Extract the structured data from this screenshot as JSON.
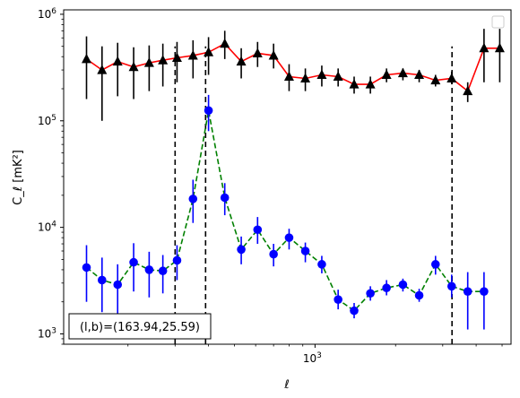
{
  "chart_data": {
    "type": "scatter",
    "title": "",
    "xlabel": "ℓ",
    "ylabel": "C_ℓ  [mK²]",
    "xscale": "log",
    "yscale": "log",
    "xlim": [
      115,
      5400
    ],
    "ylim": [
      800,
      1100000
    ],
    "grid": false,
    "legend": "top-right",
    "annotation": "(l,b)=(163.94,25.59)",
    "x_ticks": [
      {
        "value": 1000,
        "label": "10^3"
      }
    ],
    "y_ticks": [
      {
        "value": 1000,
        "label": "10^3"
      },
      {
        "value": 10000,
        "label": "10^4"
      },
      {
        "value": 100000,
        "label": "10^5"
      },
      {
        "value": 1000000,
        "label": "10^6"
      }
    ],
    "vlines": [
      {
        "x": 300,
        "y_range": [
          800,
          500000
        ]
      },
      {
        "x": 390,
        "y_range": [
          800,
          500000
        ]
      },
      {
        "x": 3250,
        "y_range": [
          800,
          500000
        ]
      }
    ],
    "series": [
      {
        "color": "#ff0000",
        "marker": "triangle",
        "marker_color": "#000000",
        "errorbar_color": "#000000",
        "line_style": "solid",
        "x": [
          140,
          160,
          183,
          210,
          240,
          270,
          305,
          350,
          400,
          460,
          530,
          610,
          700,
          800,
          920,
          1060,
          1220,
          1400,
          1610,
          1850,
          2130,
          2450,
          2820,
          3240,
          3720,
          4280,
          4900
        ],
        "y": [
          380000,
          300000,
          360000,
          320000,
          350000,
          370000,
          390000,
          410000,
          440000,
          530000,
          360000,
          430000,
          410000,
          260000,
          250000,
          270000,
          260000,
          220000,
          220000,
          270000,
          280000,
          270000,
          240000,
          250000,
          190000,
          480000,
          480000
        ],
        "err_low": [
          160000,
          100000,
          170000,
          160000,
          190000,
          210000,
          230000,
          250000,
          270000,
          380000,
          250000,
          320000,
          310000,
          190000,
          190000,
          210000,
          210000,
          180000,
          180000,
          230000,
          240000,
          230000,
          210000,
          220000,
          150000,
          230000,
          230000
        ],
        "err_high": [
          620000,
          500000,
          540000,
          490000,
          510000,
          530000,
          550000,
          570000,
          610000,
          700000,
          480000,
          550000,
          530000,
          340000,
          310000,
          330000,
          310000,
          260000,
          260000,
          310000,
          310000,
          300000,
          270000,
          290000,
          230000,
          730000,
          730000
        ]
      },
      {
        "color": "#008000",
        "marker": "circle",
        "marker_color": "#0000ff",
        "errorbar_color": "#0000ff",
        "line_style": "dashed",
        "x": [
          140,
          160,
          183,
          210,
          240,
          270,
          305,
          350,
          400,
          460,
          530,
          610,
          700,
          800,
          920,
          1060,
          1220,
          1400,
          1610,
          1850,
          2130,
          2450,
          2820,
          3240,
          3720,
          4280
        ],
        "y": [
          4200,
          3200,
          2900,
          4700,
          4000,
          3900,
          4900,
          18500,
          125000,
          19000,
          6200,
          9500,
          5600,
          8000,
          6000,
          4500,
          2100,
          1650,
          2400,
          2700,
          2900,
          2300,
          4500,
          2800,
          2500,
          2500
        ],
        "err_low": [
          2000,
          1600,
          1500,
          2500,
          2200,
          2400,
          3200,
          11000,
          80000,
          13000,
          4500,
          7000,
          4300,
          6200,
          4700,
          3700,
          1700,
          1400,
          2050,
          2300,
          2500,
          2000,
          3600,
          2200,
          1100,
          1100
        ],
        "err_high": [
          6800,
          5200,
          4500,
          7100,
          5900,
          5500,
          6800,
          28000,
          175000,
          26000,
          8200,
          12500,
          7000,
          9700,
          7200,
          5400,
          2600,
          1950,
          2800,
          3200,
          3300,
          2650,
          5400,
          3600,
          3800,
          3800
        ]
      }
    ]
  }
}
